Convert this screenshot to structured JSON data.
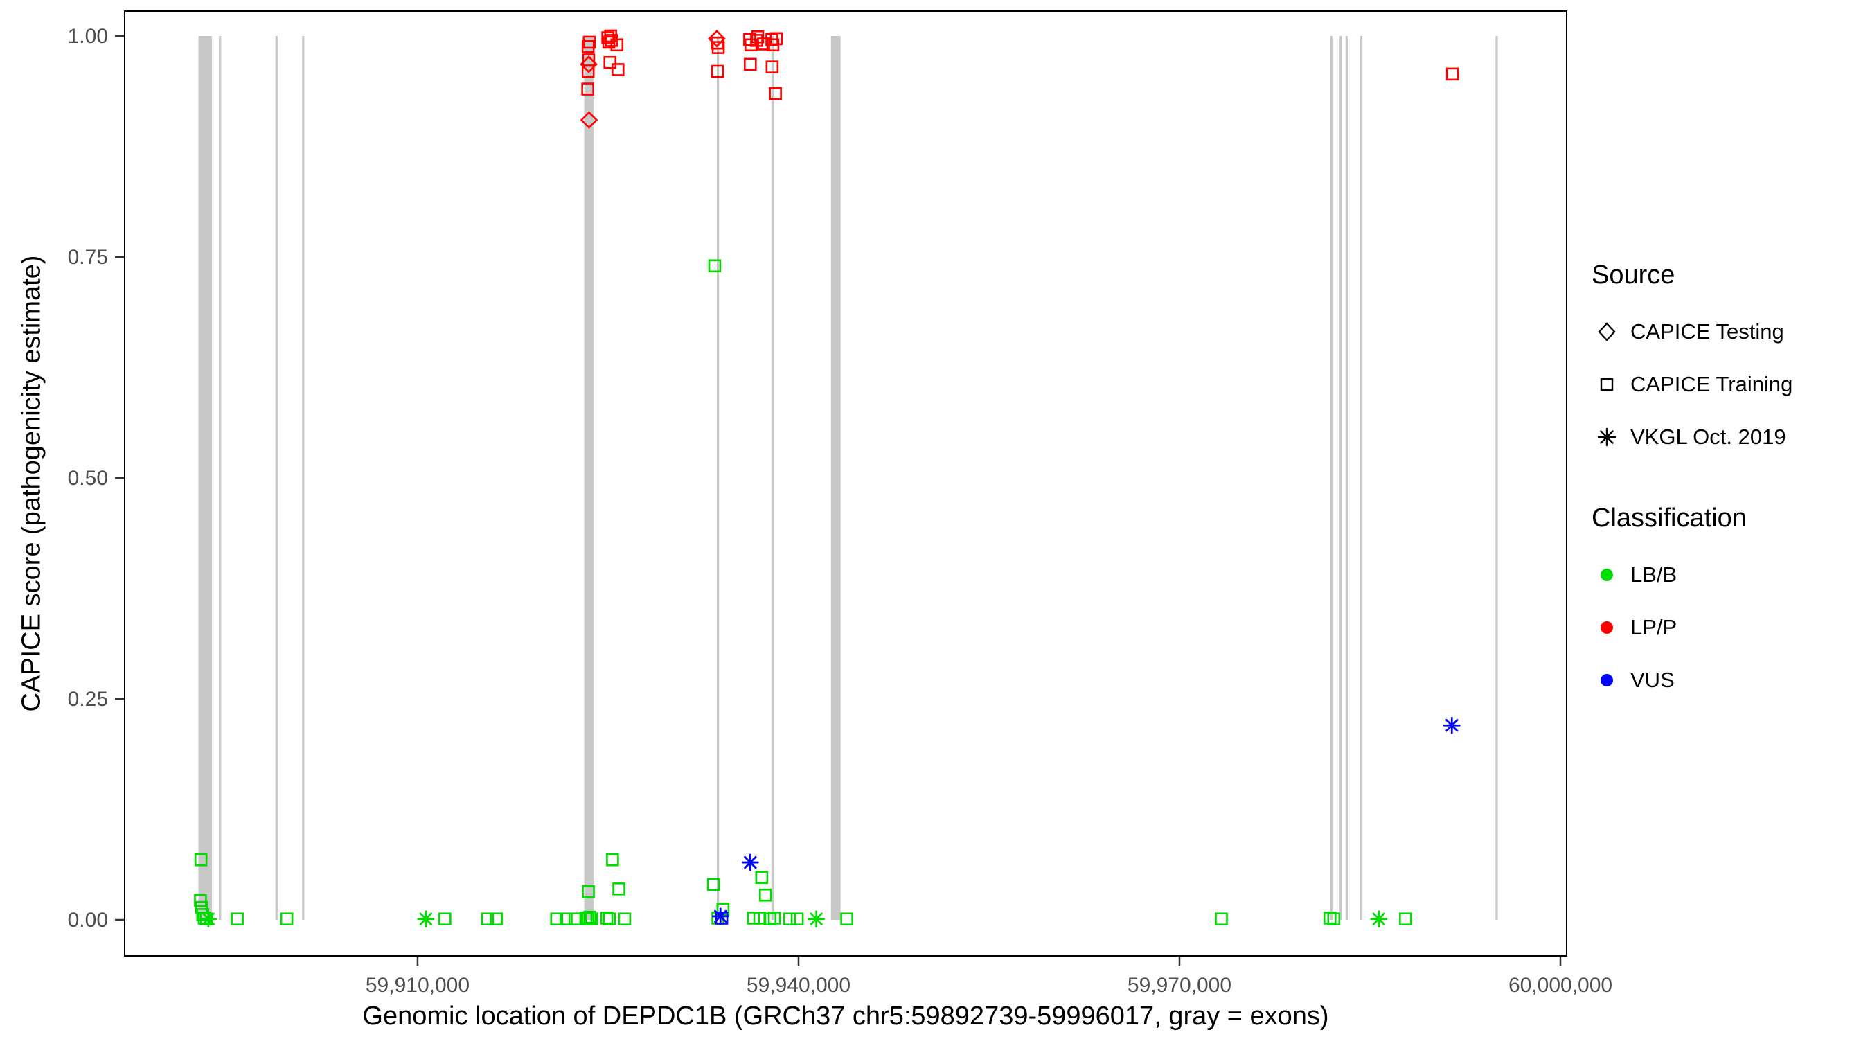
{
  "legend": {
    "source": {
      "title": "Source",
      "items": [
        {
          "label": "CAPICE Testing",
          "shape": "diamond"
        },
        {
          "label": "CAPICE Training",
          "shape": "square"
        },
        {
          "label": "VKGL Oct. 2019",
          "shape": "asterisk"
        }
      ]
    },
    "classification": {
      "title": "Classification",
      "items": [
        {
          "label": "LB/B"
        },
        {
          "label": "LP/P"
        },
        {
          "label": "VUS"
        }
      ]
    }
  },
  "chart_data": {
    "type": "scatter",
    "title": "",
    "xlabel": "Genomic location of DEPDC1B (GRCh37 chr5:59892739-59996017, gray = exons)",
    "ylabel": "CAPICE score (pathogenicity estimate)",
    "x_domain": [
      59886930,
      60000490
    ],
    "y_domain": [
      -0.04,
      1.03
    ],
    "x_ticks": [
      {
        "value": 59910000,
        "label": "59,910,000"
      },
      {
        "value": 59940000,
        "label": "59,940,000"
      },
      {
        "value": 59970000,
        "label": "59,970,000"
      },
      {
        "value": 60000000,
        "label": "60,000,000"
      }
    ],
    "y_ticks": [
      {
        "value": 0.0,
        "label": "0.00"
      },
      {
        "value": 0.25,
        "label": "0.25"
      },
      {
        "value": 0.5,
        "label": "0.50"
      },
      {
        "value": 0.75,
        "label": "0.75"
      },
      {
        "value": 1.0,
        "label": "1.00"
      }
    ],
    "grid": false,
    "legend_position": "right",
    "exon_color": "#c8c8c8",
    "colors": {
      "LB/B": "#00dc00",
      "LP/P": "#ff0000",
      "VUS": "#0000ff"
    },
    "shape_meaning": {
      "diamond": "CAPICE Testing",
      "square": "CAPICE Training",
      "asterisk": "VKGL Oct. 2019"
    },
    "exons": [
      [
        59892739,
        59893810
      ],
      [
        59894350,
        59894530
      ],
      [
        59898800,
        59898980
      ],
      [
        59900900,
        59901080
      ],
      [
        59923120,
        59923850
      ],
      [
        59933560,
        59933740
      ],
      [
        59937860,
        59938040
      ],
      [
        59942550,
        59943310
      ],
      [
        59981870,
        59982050
      ],
      [
        59982610,
        59982790
      ],
      [
        59983080,
        59983260
      ],
      [
        59984230,
        59984410
      ],
      [
        59994890,
        59995070
      ]
    ],
    "points": [
      {
        "x": 59892940,
        "y": 0.068,
        "shape": "square",
        "cls": "LB/B"
      },
      {
        "x": 59892900,
        "y": 0.022,
        "shape": "square",
        "cls": "LB/B"
      },
      {
        "x": 59892990,
        "y": 0.014,
        "shape": "square",
        "cls": "LB/B"
      },
      {
        "x": 59893080,
        "y": 0.006,
        "shape": "square",
        "cls": "LB/B"
      },
      {
        "x": 59893200,
        "y": 0.002,
        "shape": "square",
        "cls": "LB/B"
      },
      {
        "x": 59893360,
        "y": 0.001,
        "shape": "square",
        "cls": "LB/B"
      },
      {
        "x": 59893520,
        "y": 0.001,
        "shape": "asterisk",
        "cls": "LB/B"
      },
      {
        "x": 59895800,
        "y": 0.001,
        "shape": "square",
        "cls": "LB/B"
      },
      {
        "x": 59899700,
        "y": 0.001,
        "shape": "square",
        "cls": "LB/B"
      },
      {
        "x": 59910650,
        "y": 0.001,
        "shape": "asterisk",
        "cls": "LB/B"
      },
      {
        "x": 59912150,
        "y": 0.001,
        "shape": "square",
        "cls": "LB/B"
      },
      {
        "x": 59915500,
        "y": 0.001,
        "shape": "square",
        "cls": "LB/B"
      },
      {
        "x": 59916200,
        "y": 0.001,
        "shape": "square",
        "cls": "LB/B"
      },
      {
        "x": 59920950,
        "y": 0.001,
        "shape": "square",
        "cls": "LB/B"
      },
      {
        "x": 59921700,
        "y": 0.001,
        "shape": "square",
        "cls": "LB/B"
      },
      {
        "x": 59922400,
        "y": 0.001,
        "shape": "square",
        "cls": "LB/B"
      },
      {
        "x": 59923250,
        "y": 0.002,
        "shape": "square",
        "cls": "LB/B"
      },
      {
        "x": 59923400,
        "y": 0.001,
        "shape": "square",
        "cls": "LB/B"
      },
      {
        "x": 59923450,
        "y": 0.032,
        "shape": "square",
        "cls": "LB/B"
      },
      {
        "x": 59923560,
        "y": 0.003,
        "shape": "square",
        "cls": "LB/B"
      },
      {
        "x": 59923700,
        "y": 0.001,
        "shape": "square",
        "cls": "LB/B"
      },
      {
        "x": 59924900,
        "y": 0.002,
        "shape": "square",
        "cls": "LB/B"
      },
      {
        "x": 59925100,
        "y": 0.001,
        "shape": "square",
        "cls": "LB/B"
      },
      {
        "x": 59925350,
        "y": 0.068,
        "shape": "square",
        "cls": "LB/B"
      },
      {
        "x": 59925850,
        "y": 0.035,
        "shape": "square",
        "cls": "LB/B"
      },
      {
        "x": 59926300,
        "y": 0.001,
        "shape": "square",
        "cls": "LB/B"
      },
      {
        "x": 59933300,
        "y": 0.04,
        "shape": "square",
        "cls": "LB/B"
      },
      {
        "x": 59933400,
        "y": 0.74,
        "shape": "square",
        "cls": "LB/B"
      },
      {
        "x": 59933650,
        "y": 0.002,
        "shape": "square",
        "cls": "LB/B"
      },
      {
        "x": 59934050,
        "y": 0.012,
        "shape": "square",
        "cls": "LB/B"
      },
      {
        "x": 59936450,
        "y": 0.002,
        "shape": "square",
        "cls": "LB/B"
      },
      {
        "x": 59936950,
        "y": 0.002,
        "shape": "square",
        "cls": "LB/B"
      },
      {
        "x": 59937100,
        "y": 0.048,
        "shape": "square",
        "cls": "LB/B"
      },
      {
        "x": 59937400,
        "y": 0.028,
        "shape": "square",
        "cls": "LB/B"
      },
      {
        "x": 59937750,
        "y": 0.001,
        "shape": "square",
        "cls": "LB/B"
      },
      {
        "x": 59938100,
        "y": 0.002,
        "shape": "square",
        "cls": "LB/B"
      },
      {
        "x": 59939300,
        "y": 0.001,
        "shape": "square",
        "cls": "LB/B"
      },
      {
        "x": 59939900,
        "y": 0.001,
        "shape": "square",
        "cls": "LB/B"
      },
      {
        "x": 59941400,
        "y": 0.001,
        "shape": "asterisk",
        "cls": "LB/B"
      },
      {
        "x": 59943800,
        "y": 0.001,
        "shape": "square",
        "cls": "LB/B"
      },
      {
        "x": 59973300,
        "y": 0.001,
        "shape": "square",
        "cls": "LB/B"
      },
      {
        "x": 59981850,
        "y": 0.002,
        "shape": "square",
        "cls": "LB/B"
      },
      {
        "x": 59982150,
        "y": 0.001,
        "shape": "square",
        "cls": "LB/B"
      },
      {
        "x": 59985700,
        "y": 0.001,
        "shape": "asterisk",
        "cls": "LB/B"
      },
      {
        "x": 59987800,
        "y": 0.001,
        "shape": "square",
        "cls": "LB/B"
      },
      {
        "x": 59923430,
        "y": 0.988,
        "shape": "square",
        "cls": "LP/P"
      },
      {
        "x": 59923520,
        "y": 0.993,
        "shape": "square",
        "cls": "LP/P"
      },
      {
        "x": 59923470,
        "y": 0.973,
        "shape": "square",
        "cls": "LP/P"
      },
      {
        "x": 59923480,
        "y": 0.968,
        "shape": "diamond",
        "cls": "LP/P"
      },
      {
        "x": 59923430,
        "y": 0.96,
        "shape": "square",
        "cls": "LP/P"
      },
      {
        "x": 59923400,
        "y": 0.94,
        "shape": "square",
        "cls": "LP/P"
      },
      {
        "x": 59923500,
        "y": 0.905,
        "shape": "diamond",
        "cls": "LP/P"
      },
      {
        "x": 59924980,
        "y": 0.998,
        "shape": "square",
        "cls": "LP/P"
      },
      {
        "x": 59925060,
        "y": 0.993,
        "shape": "square",
        "cls": "LP/P"
      },
      {
        "x": 59925200,
        "y": 1.0,
        "shape": "square",
        "cls": "LP/P"
      },
      {
        "x": 59925280,
        "y": 0.995,
        "shape": "square",
        "cls": "LP/P"
      },
      {
        "x": 59925150,
        "y": 0.97,
        "shape": "square",
        "cls": "LP/P"
      },
      {
        "x": 59925700,
        "y": 0.99,
        "shape": "square",
        "cls": "LP/P"
      },
      {
        "x": 59925780,
        "y": 0.962,
        "shape": "square",
        "cls": "LP/P"
      },
      {
        "x": 59933560,
        "y": 0.997,
        "shape": "diamond",
        "cls": "LP/P"
      },
      {
        "x": 59933600,
        "y": 0.992,
        "shape": "square",
        "cls": "LP/P"
      },
      {
        "x": 59933680,
        "y": 0.987,
        "shape": "square",
        "cls": "LP/P"
      },
      {
        "x": 59933620,
        "y": 0.96,
        "shape": "square",
        "cls": "LP/P"
      },
      {
        "x": 59936150,
        "y": 0.996,
        "shape": "square",
        "cls": "LP/P"
      },
      {
        "x": 59936250,
        "y": 0.99,
        "shape": "square",
        "cls": "LP/P"
      },
      {
        "x": 59936200,
        "y": 0.968,
        "shape": "square",
        "cls": "LP/P"
      },
      {
        "x": 59936700,
        "y": 0.995,
        "shape": "square",
        "cls": "LP/P"
      },
      {
        "x": 59936780,
        "y": 0.999,
        "shape": "square",
        "cls": "LP/P"
      },
      {
        "x": 59937250,
        "y": 0.991,
        "shape": "square",
        "cls": "LP/P"
      },
      {
        "x": 59937900,
        "y": 0.996,
        "shape": "square",
        "cls": "LP/P"
      },
      {
        "x": 59937980,
        "y": 0.99,
        "shape": "square",
        "cls": "LP/P"
      },
      {
        "x": 59937920,
        "y": 0.965,
        "shape": "square",
        "cls": "LP/P"
      },
      {
        "x": 59938180,
        "y": 0.935,
        "shape": "square",
        "cls": "LP/P"
      },
      {
        "x": 59938250,
        "y": 0.997,
        "shape": "square",
        "cls": "LP/P"
      },
      {
        "x": 59991500,
        "y": 0.957,
        "shape": "square",
        "cls": "LP/P"
      },
      {
        "x": 59933850,
        "y": 0.004,
        "shape": "asterisk",
        "cls": "VUS"
      },
      {
        "x": 59933950,
        "y": 0.002,
        "shape": "square",
        "cls": "VUS"
      },
      {
        "x": 59936200,
        "y": 0.065,
        "shape": "asterisk",
        "cls": "VUS"
      },
      {
        "x": 59991450,
        "y": 0.22,
        "shape": "asterisk",
        "cls": "VUS"
      }
    ]
  }
}
